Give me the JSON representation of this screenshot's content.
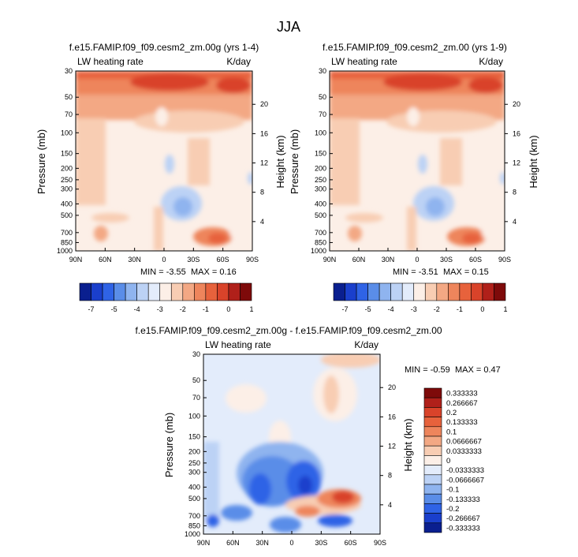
{
  "page_title": "JJA",
  "palette": [
    "#0a1f8f",
    "#1a3fcc",
    "#2f63e6",
    "#5a8de8",
    "#8fb4ef",
    "#bcd2f5",
    "#e3ecfb",
    "#fcefe7",
    "#f8cdb3",
    "#f3a884",
    "#ee855c",
    "#e7623c",
    "#d9432a",
    "#b0201a",
    "#7e0a0a"
  ],
  "chart_data": [
    {
      "type": "heatmap",
      "title": "f.e15.FAMIP.f09_f09.cesm2_zm.00g (yrs 1-4)",
      "left_label": "LW heating rate",
      "right_label": "K/day",
      "ylabel": "Pressure (mb)",
      "ylabel_right": "Height (km)",
      "xlabel": "",
      "x_ticks": [
        "90N",
        "60N",
        "30N",
        "0",
        "30S",
        "60S",
        "90S"
      ],
      "y_ticks": [
        "30",
        "50",
        "70",
        "100",
        "150",
        "200",
        "250",
        "300",
        "400",
        "500",
        "700",
        "850",
        "1000"
      ],
      "y_ticks_right": [
        "20",
        "16",
        "12",
        "8",
        "4"
      ],
      "x_range": [
        90,
        -90
      ],
      "y_range": [
        30,
        1000
      ],
      "min_text": "MIN =  -3.55",
      "max_text": "MAX =  0.16",
      "colorbar_labels": [
        "-7",
        "-5",
        "-4",
        "-3",
        "-2",
        "-1",
        "0",
        "1"
      ]
    },
    {
      "type": "heatmap",
      "title": "f.e15.FAMIP.f09_f09.cesm2_zm.00 (yrs 1-9)",
      "left_label": "LW heating rate",
      "right_label": "K/day",
      "ylabel": "Pressure (mb)",
      "ylabel_right": "Height (km)",
      "xlabel": "",
      "x_ticks": [
        "90N",
        "60N",
        "30N",
        "0",
        "30S",
        "60S",
        "90S"
      ],
      "y_ticks": [
        "30",
        "50",
        "70",
        "100",
        "150",
        "200",
        "250",
        "300",
        "400",
        "500",
        "700",
        "850",
        "1000"
      ],
      "y_ticks_right": [
        "20",
        "16",
        "12",
        "8",
        "4"
      ],
      "x_range": [
        90,
        -90
      ],
      "y_range": [
        30,
        1000
      ],
      "min_text": "MIN =  -3.51",
      "max_text": "MAX =  0.15",
      "colorbar_labels": [
        "-7",
        "-5",
        "-4",
        "-3",
        "-2",
        "-1",
        "0",
        "1"
      ]
    },
    {
      "type": "heatmap",
      "title": "f.e15.FAMIP.f09_f09.cesm2_zm.00g - f.e15.FAMIP.f09_f09.cesm2_zm.00",
      "left_label": "LW heating rate",
      "right_label": "K/day",
      "ylabel": "Pressure (mb)",
      "ylabel_right": "Height (km)",
      "xlabel": "",
      "x_ticks": [
        "90N",
        "60N",
        "30N",
        "0",
        "30S",
        "60S",
        "90S"
      ],
      "y_ticks": [
        "30",
        "50",
        "70",
        "100",
        "150",
        "200",
        "250",
        "300",
        "400",
        "500",
        "700",
        "850",
        "1000"
      ],
      "y_ticks_right": [
        "20",
        "16",
        "12",
        "8",
        "4"
      ],
      "x_range": [
        90,
        -90
      ],
      "y_range": [
        30,
        1000
      ],
      "min_text": "MIN =  -0.59",
      "max_text": "MAX =  0.47",
      "colorbar_labels": [
        "0.333333",
        "0.266667",
        "0.2",
        "0.133333",
        "0.1",
        "0.0666667",
        "0.0333333",
        "0",
        "-0.0333333",
        "-0.0666667",
        "-0.1",
        "-0.133333",
        "-0.2",
        "-0.266667",
        "-0.333333"
      ]
    }
  ]
}
